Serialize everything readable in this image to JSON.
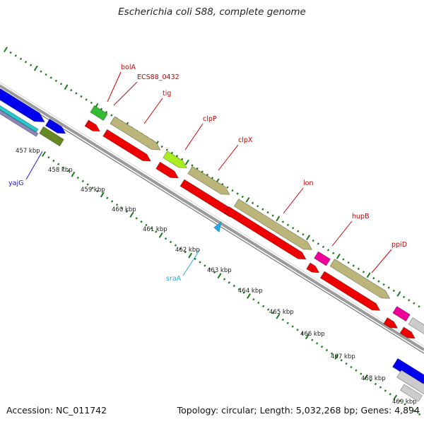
{
  "title": "Escherichia coli S88, complete genome",
  "footer": {
    "accession": "Accession: NC_011742",
    "summary": "Topology: circular; Length: 5,032,268 bp; Genes: 4,894"
  },
  "colors": {
    "background": "#ffffff",
    "backbone": "#999999",
    "tick": "#1a7a1a",
    "gene_label": "#cc0000",
    "kbp_label": "#222222",
    "yajG_label": "#1a1acc",
    "sraA_label": "#33aacc",
    "cds_red": "#ee0000",
    "cds_khaki": "#bbb57a",
    "cds_blue": "#0000ee",
    "cds_olive": "#668822",
    "cds_green": "#33bb33",
    "cds_lime": "#aaee22",
    "cds_magenta": "#ee0099",
    "cds_gray": "#cccccc",
    "cds_cyan": "#22cccc",
    "marker_cyan": "#22aaee"
  },
  "kbp_labels": [
    "457 kbp",
    "458 kbp",
    "459 kbp",
    "460 kbp",
    "461 kbp",
    "462 kbp",
    "463 kbp",
    "464 kbp",
    "465 kbp",
    "466 kbp",
    "467 kbp",
    "468 kbp",
    "469 kbp"
  ],
  "gene_labels": [
    "bolA",
    "ECS88_0432",
    "tig",
    "clpP",
    "clpX",
    "lon",
    "hupB",
    "ppiD"
  ],
  "other_labels": {
    "yajG": "yajG",
    "sraA": "sraA"
  }
}
